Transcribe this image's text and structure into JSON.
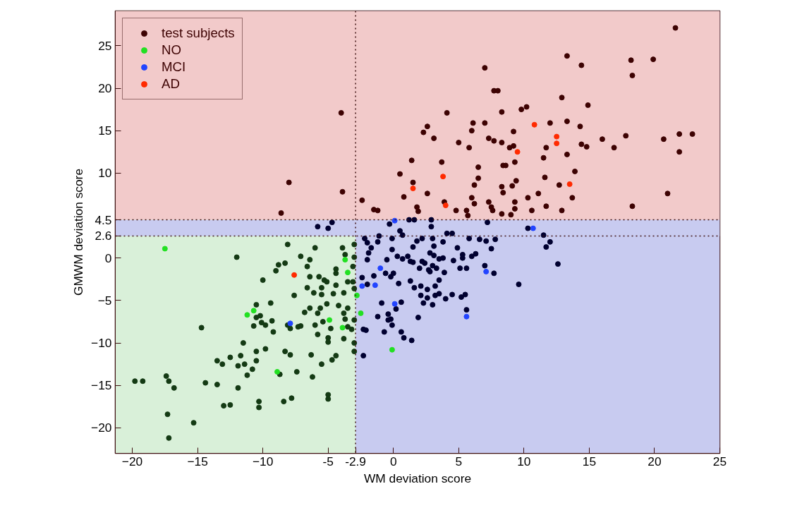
{
  "chart_data": {
    "type": "scatter",
    "xlabel": "WM deviation score",
    "ylabel": "GMWM deviation score",
    "xlim": [
      -21.3,
      25
    ],
    "ylim": [
      -23,
      29.1
    ],
    "xticks": [
      -20,
      -15,
      -10,
      {
        "value": -5,
        "label": "-5"
      },
      {
        "value": -2.9,
        "label": "-2.9"
      },
      0,
      5,
      10,
      15,
      20,
      25
    ],
    "yticks": [
      -20,
      -15,
      -10,
      -5,
      0,
      2.6,
      4.5,
      10,
      15,
      20,
      25
    ],
    "grid": false,
    "legend": "top left",
    "marker": "circle",
    "bands": [
      {
        "axis": "x",
        "from": -21.3,
        "to": -2.9,
        "color": "#d9f0d9"
      },
      {
        "axis": "x",
        "from": -2.9,
        "to": 25,
        "color": "#c8cbf0"
      },
      {
        "axis": "y",
        "from": 2.6,
        "to": 4.5,
        "color": "#c8cbf0"
      },
      {
        "axis": "y",
        "from": 4.5,
        "to": 29.1,
        "color": "#f2caca"
      }
    ],
    "ref_lines": [
      {
        "axis": "x",
        "value": -2.9,
        "line_style": "dotted",
        "color": "#3d1010"
      },
      {
        "axis": "y",
        "value": 4.5,
        "line_style": "dotted",
        "color": "#3d1010"
      },
      {
        "axis": "y",
        "value": 2.6,
        "line_style": "dotted",
        "color": "#3d1010"
      }
    ],
    "series": [
      {
        "name": "test subjects",
        "color": "#3d0202",
        "x": [
          -8.6,
          -8.0,
          -4.0,
          -3.9,
          -2.4,
          -1.5,
          -1.2,
          0.5,
          0.8,
          1.4,
          1.5,
          1.8,
          1.9,
          2.3,
          2.6,
          3.1,
          2.6,
          3.7,
          3.9,
          4.1,
          4.8,
          5.0,
          5.6,
          5.7,
          5.8,
          6.0,
          6.0,
          6.1,
          6.2,
          6.2,
          6.5,
          6.5,
          7.0,
          7.0,
          7.3,
          7.3,
          7.5,
          7.6,
          7.7,
          8.0,
          7.7,
          8.3,
          8.3,
          8.3,
          8.4,
          8.3,
          8.4,
          8.6,
          8.9,
          9.2,
          9.2,
          9.3,
          9.1,
          9.4,
          9.3,
          9.3,
          9.0,
          9.8,
          10.2,
          10.3,
          10.6,
          11.1,
          11.5,
          11.7,
          11.6,
          11.7,
          12.0,
          12.7,
          12.9,
          12.9,
          13.3,
          13.3,
          13.3,
          13.7,
          13.9,
          14.3,
          14.4,
          14.4,
          14.8,
          14.9,
          16.0,
          16.9,
          17.8,
          18.2,
          18.3,
          18.3,
          19.9,
          20.7,
          21.0,
          21.6,
          21.9,
          21.9,
          22.9
        ],
        "values": [
          5.3,
          8.9,
          17.1,
          7.8,
          6.8,
          5.7,
          5.6,
          9.9,
          7.2,
          11.5,
          8.9,
          6.0,
          5.5,
          14.8,
          15.5,
          14.1,
          7.6,
          11.3,
          6.6,
          17.1,
          5.6,
          13.6,
          5.6,
          5.0,
          13.0,
          7.1,
          15.0,
          15.9,
          8.6,
          6.4,
          10.7,
          9.4,
          22.4,
          15.9,
          14.1,
          6.6,
          6.0,
          5.6,
          19.7,
          19.7,
          13.8,
          13.6,
          17.2,
          8.4,
          7.7,
          5.2,
          10.9,
          10.9,
          13.0,
          13.2,
          14.9,
          11.3,
          8.5,
          9.1,
          6.6,
          5.8,
          5.1,
          17.5,
          17.8,
          7.1,
          5.6,
          7.6,
          11.8,
          13.0,
          9.5,
          6.1,
          15.9,
          8.6,
          5.6,
          18.9,
          12.2,
          16.1,
          23.8,
          7.1,
          10.2,
          15.5,
          22.7,
          13.4,
          13.1,
          18.0,
          14.0,
          13.0,
          14.4,
          23.3,
          21.5,
          6.1,
          23.4,
          14.0,
          7.6,
          27.1,
          14.6,
          12.5,
          14.6
        ]
      },
      {
        "color": "#000030",
        "x": [
          -5.8,
          -5.0,
          -4.7,
          -0.3,
          1.2,
          1.6,
          2.9,
          2.9,
          0.5,
          0.7,
          7.2,
          10.3,
          -2.2,
          -2.0,
          -1.7,
          -1.9,
          -2.0,
          -1.2,
          -1.1,
          -0.1,
          -0.1,
          -0.5,
          -1.5,
          -2.0,
          -0.6,
          0.0,
          -0.2,
          0.3,
          0.4,
          0.7,
          1.1,
          1.3,
          1.5,
          1.5,
          1.8,
          2.2,
          1.3,
          1.6,
          2.1,
          2.1,
          2.2,
          2.4,
          2.0,
          2.6,
          2.6,
          2.3,
          3.0,
          2.7,
          2.8,
          2.8,
          3.1,
          3.1,
          3.0,
          3.0,
          3.3,
          3.2,
          3.5,
          3.2,
          3.5,
          3.5,
          3.8,
          3.9,
          3.8,
          4.1,
          4.5,
          4.6,
          4.0,
          4.5,
          4.9,
          5.2,
          5.5,
          5.1,
          5.6,
          5.3,
          5.3,
          6.3,
          6.0,
          5.8,
          5.6,
          6.6,
          7.1,
          7.5,
          7.8,
          7.0,
          7.7,
          9.6,
          11.5,
          12.0,
          11.7,
          12.6,
          -2.4,
          -2.3,
          -2.1,
          -2.3,
          -1.2,
          -0.9,
          -0.4,
          -0.4,
          -0.2,
          -0.1,
          0.2,
          0.6,
          -0.7,
          0.6,
          0.8,
          1.4,
          1.9
        ],
        "values": [
          3.7,
          3.5,
          4.2,
          4.0,
          4.5,
          4.5,
          4.5,
          3.7,
          3.2,
          2.7,
          4.2,
          3.5,
          2.3,
          1.8,
          1.2,
          0.6,
          -0.2,
          1.9,
          2.6,
          2.3,
          1.0,
          -0.2,
          -2.1,
          -3.1,
          -1.8,
          -1.8,
          -2.2,
          0.2,
          -3.0,
          -0.1,
          0.2,
          -0.4,
          -0.5,
          1.3,
          2.0,
          2.3,
          -2.7,
          -3.5,
          -3.3,
          -4.4,
          -0.4,
          -0.6,
          -1.2,
          -3.7,
          -4.7,
          -5.3,
          -5.5,
          -1.4,
          -1.6,
          0.6,
          0.3,
          1.4,
          2.3,
          -0.9,
          -1.2,
          -3.3,
          -2.6,
          -4.4,
          -4.2,
          -0.1,
          0.0,
          -1.7,
          1.9,
          2.9,
          2.9,
          -0.3,
          -4.8,
          -4.3,
          1.2,
          -4.6,
          -4.3,
          -1.2,
          -1.2,
          0.0,
          0.4,
          0.5,
          0.2,
          2.3,
          -6.1,
          2.2,
          2.0,
          1.1,
          2.2,
          -0.9,
          -1.8,
          -3.1,
          2.7,
          1.9,
          1.3,
          -0.7,
          -2.3,
          -8.4,
          -8.5,
          -11.5,
          -6.9,
          -5.3,
          -6.6,
          -7.3,
          -7.2,
          -7.9,
          -6.0,
          -5.2,
          -8.7,
          -8.7,
          -9.4,
          -9.7,
          -7.0
        ]
      },
      {
        "color": "#143a14",
        "x": [
          -19.8,
          -19.2,
          -17.4,
          -17.2,
          -16.8,
          -17.3,
          -17.2,
          -15.3,
          -14.7,
          -14.4,
          -13.5,
          -13.5,
          -13.1,
          -13.0,
          -12.5,
          -12.5,
          -12.0,
          -11.9,
          -11.9,
          -11.7,
          -11.5,
          -11.4,
          -11.2,
          -10.8,
          -10.7,
          -10.5,
          -10.5,
          -10.5,
          -10.5,
          -10.3,
          -10.3,
          -10.2,
          -10.1,
          -10.0,
          -9.8,
          -9.8,
          -9.4,
          -9.3,
          -9.2,
          -9.0,
          -8.8,
          -8.7,
          -8.4,
          -8.3,
          -8.3,
          -8.1,
          -8.1,
          -7.9,
          -7.9,
          -7.8,
          -7.6,
          -7.4,
          -7.3,
          -7.1,
          -7.1,
          -6.8,
          -6.6,
          -6.6,
          -6.4,
          -6.4,
          -6.4,
          -6.3,
          -6.2,
          -6.1,
          -6.0,
          -6.0,
          -5.8,
          -5.8,
          -5.7,
          -5.6,
          -5.5,
          -5.5,
          -5.5,
          -5.4,
          -5.3,
          -5.1,
          -5.1,
          -5.0,
          -5.0,
          -5.0,
          -5.0,
          -4.8,
          -4.7,
          -4.4,
          -4.6,
          -4.4,
          -4.4,
          -4.4,
          -4.2,
          -3.9,
          -3.8,
          -3.8,
          -3.8,
          -3.7,
          -3.7,
          -3.5,
          -3.5,
          -3.5,
          -3.2,
          -3.1,
          -3.1,
          -3.0,
          -3.0,
          -3.0,
          -3.0,
          -3.0,
          -3.0
        ],
        "values": [
          -14.5,
          -14.5,
          -13.9,
          -14.5,
          -15.3,
          -18.4,
          -21.2,
          -19.4,
          -8.2,
          -14.7,
          -14.9,
          -12.1,
          -12.5,
          -17.4,
          -17.3,
          -11.7,
          0.1,
          -12.7,
          -15.3,
          -11.5,
          -10.0,
          -12.5,
          -13.8,
          -13.1,
          -8.0,
          -5.5,
          -7.0,
          -11.0,
          -12.1,
          -16.9,
          -17.6,
          -6.8,
          -7.6,
          -2.6,
          -7.9,
          -10.7,
          -5.3,
          -7.4,
          -8.7,
          -1.5,
          -0.8,
          -13.7,
          -16.9,
          -0.6,
          -11.0,
          1.6,
          -7.9,
          -11.4,
          -8.3,
          -16.5,
          -4.4,
          -13.4,
          -8.1,
          -8.0,
          0.2,
          -6.4,
          -1.0,
          -3.5,
          -0.2,
          -5.9,
          -2.2,
          -11.4,
          -14.0,
          -4.1,
          1.2,
          -7.9,
          -9.0,
          -6.5,
          -2.2,
          -5.9,
          -12.5,
          -4.3,
          -3.5,
          -7.5,
          -2.6,
          -2.8,
          -5.4,
          -9.4,
          -9.9,
          -16.1,
          -16.6,
          -8.3,
          -12.0,
          -11.5,
          -4.2,
          -3.2,
          -1.8,
          -1.3,
          -5.6,
          1.2,
          -4.1,
          -6.5,
          -9.5,
          -7.2,
          0.4,
          -2.8,
          -5.9,
          -8.1,
          -8.4,
          -1.0,
          -2.8,
          0.1,
          -7.3,
          -10.0,
          1.6,
          -11.0,
          -3.6
        ]
      },
      {
        "name": "NO",
        "color": "#22e022",
        "x": [
          -17.5,
          -11.2,
          -10.7,
          -8.9,
          -4.9,
          -3.9,
          -3.7,
          -3.5,
          -2.8,
          -2.5,
          -0.1
        ],
        "values": [
          1.1,
          -6.7,
          -6.2,
          -13.4,
          -7.3,
          -8.2,
          -0.2,
          -1.7,
          -4.4,
          -6.5,
          -10.8
        ]
      },
      {
        "name": "MCI",
        "color": "#2244ff",
        "x": [
          -7.9,
          -2.4,
          0.1,
          -1.0,
          -1.4,
          0.1,
          7.1,
          5.6,
          10.7
        ],
        "values": [
          -7.7,
          -3.3,
          4.4,
          -1.2,
          -3.2,
          -5.4,
          -1.6,
          -6.9,
          3.5
        ]
      },
      {
        "name": "AD",
        "color": "#ff2a00",
        "x": [
          1.5,
          3.8,
          4.0,
          9.5,
          10.8,
          12.5,
          12.5,
          13.5,
          -7.6
        ],
        "values": [
          8.2,
          9.6,
          6.2,
          12.5,
          15.7,
          14.3,
          13.5,
          8.7,
          -2.0
        ]
      }
    ]
  }
}
